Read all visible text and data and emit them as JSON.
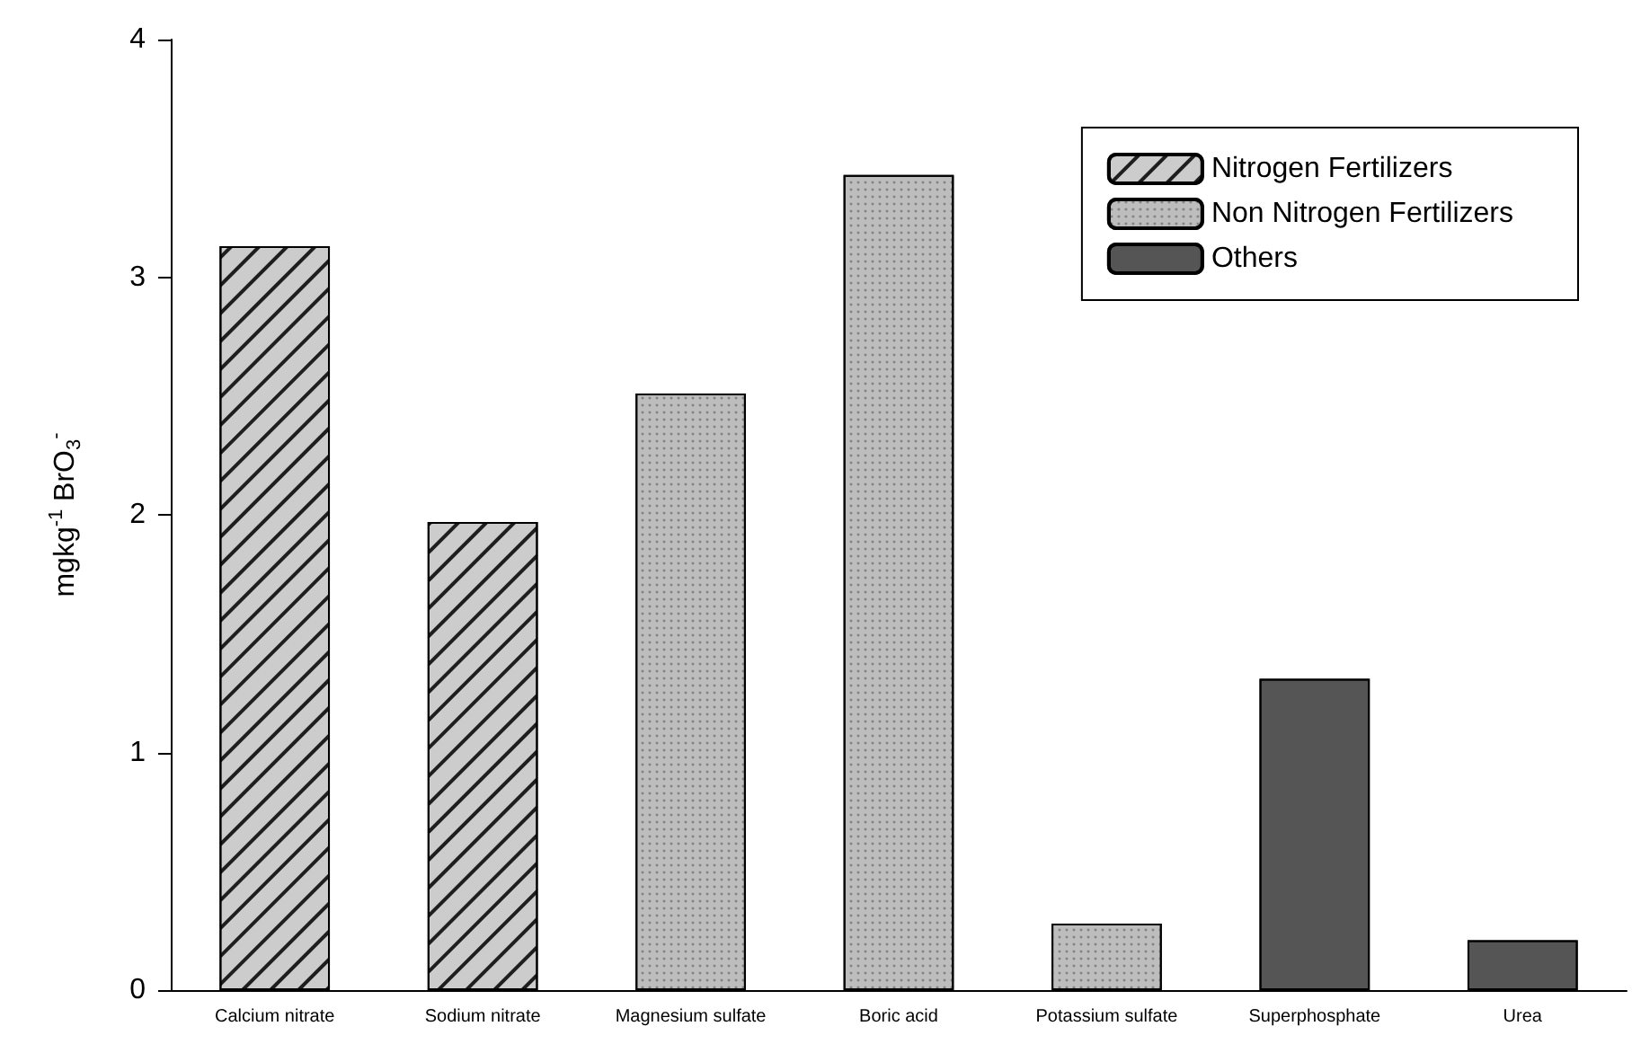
{
  "chart_data": {
    "type": "bar",
    "ylabel": "mgkg$^{-1}$ BrO$_{3}$$^{-}$",
    "categories": [
      "Calcium nitrate",
      "Sodium nitrate",
      "Magnesium sulfate",
      "Boric acid",
      "Potassium sulfate",
      "Superphosphate",
      "Urea"
    ],
    "series": [
      {
        "name": "Nitrogen Fertilizers",
        "color": "#cccccc",
        "values": [
          3.13,
          1.97,
          null,
          null,
          null,
          null,
          null
        ]
      },
      {
        "name": "Non Nitrogen Fertilizers",
        "color": "#bdbdbd",
        "values": [
          null,
          null,
          2.51,
          3.43,
          0.28,
          null,
          null
        ]
      },
      {
        "name": "Others",
        "color": "#555555",
        "values": [
          null,
          null,
          null,
          null,
          null,
          1.31,
          0.21
        ]
      }
    ],
    "stacked": true,
    "ylim": [
      0,
      4
    ],
    "yticks": [
      0,
      1,
      2,
      3,
      4
    ],
    "grid": false,
    "legend": "top right"
  }
}
